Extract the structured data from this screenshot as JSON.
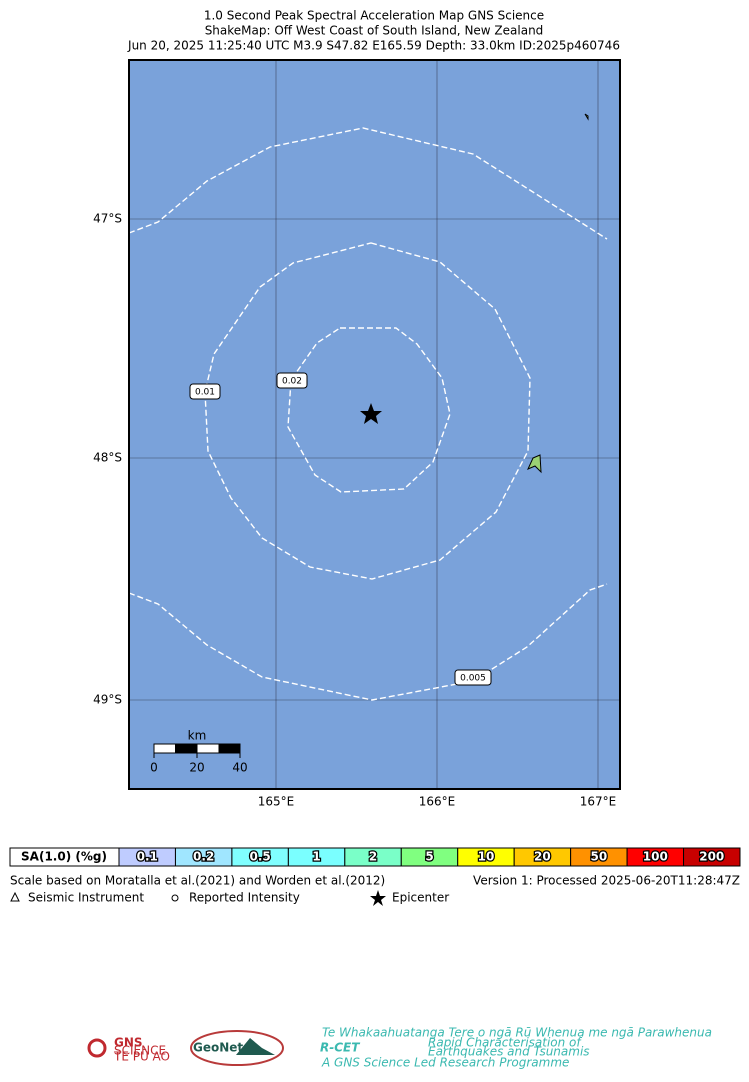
{
  "header": {
    "lines": [
      "1.0 Second Peak Spectral Acceleration Map GNS Science",
      "ShakeMap: Off West Coast of South Island, New Zealand",
      "Jun 20, 2025 11:25:40 UTC M3.9 S47.82 E165.59 Depth: 33.0km ID:2025p460746"
    ]
  },
  "map": {
    "lat_ticks": [
      "47°S",
      "48°S",
      "49°S"
    ],
    "lon_ticks": [
      "165°E",
      "166°E",
      "167°E"
    ],
    "contour_labels": [
      "0.01",
      "0.02",
      "0.005"
    ],
    "scale_bar": {
      "unit": "km",
      "labels": [
        "0",
        "20",
        "40"
      ]
    }
  },
  "colorbar": {
    "title": "SA(1.0) (%g)",
    "cells": [
      {
        "label": "0.1",
        "color": "#bfccff"
      },
      {
        "label": "0.2",
        "color": "#a0e6ff"
      },
      {
        "label": "0.5",
        "color": "#80ffff"
      },
      {
        "label": "1",
        "color": "#7affff"
      },
      {
        "label": "2",
        "color": "#7affc8"
      },
      {
        "label": "5",
        "color": "#80ff80"
      },
      {
        "label": "10",
        "color": "#ffff00"
      },
      {
        "label": "20",
        "color": "#ffc800"
      },
      {
        "label": "50",
        "color": "#ff9100"
      },
      {
        "label": "100",
        "color": "#ff0000"
      },
      {
        "label": "200",
        "color": "#c80000"
      }
    ]
  },
  "footer": {
    "scale_note": "Scale based on Moratalla et al.(2021) and Worden et al.(2012)",
    "version": "Version 1: Processed 2025-06-20T11:28:47Z",
    "legend": [
      "Seismic Instrument",
      "Reported Intensity",
      "Epicenter"
    ]
  },
  "logos": {
    "gns": [
      "GNS",
      "SCIENCE",
      "TE PŪ AO"
    ],
    "geonet": "GeoNet",
    "rcet": {
      "name": "R-CET",
      "tagline": "Te Whakaahuatanga Tere o ngā Rū Whenua me ngā Parawhenua",
      "line1": "Rapid Characterisation of",
      "line2": "Earthquakes and Tsunamis",
      "footer": "A GNS Science Led Research Programme"
    }
  }
}
